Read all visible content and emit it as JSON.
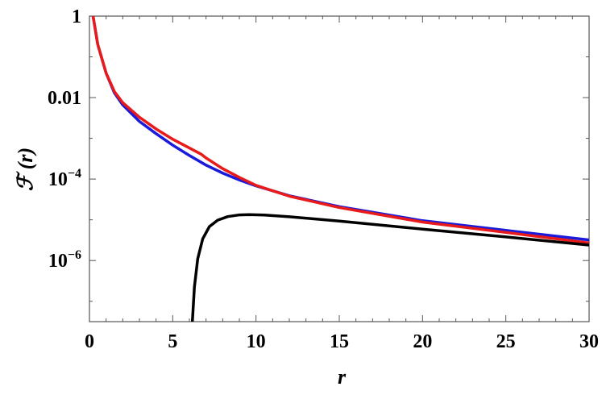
{
  "chart_data": {
    "type": "line",
    "title": "",
    "xlabel": "r",
    "ylabel": "ℱ (r)",
    "xlim": [
      0,
      30
    ],
    "ylim_log10": [
      -7.5,
      0
    ],
    "y_scale": "log",
    "grid": false,
    "x_ticks": [
      0,
      5,
      10,
      15,
      20,
      25,
      30
    ],
    "x_tick_labels": [
      "0",
      "5",
      "10",
      "15",
      "20",
      "25",
      "30"
    ],
    "y_ticks": [
      {
        "value": 1,
        "mantissa": "1",
        "exp": ""
      },
      {
        "value": 0.01,
        "mantissa": "0.01",
        "exp": ""
      },
      {
        "value": 0.0001,
        "mantissa": "10",
        "exp": "−4"
      },
      {
        "value": 1e-06,
        "mantissa": "10",
        "exp": "−6"
      }
    ],
    "series": [
      {
        "color": "#1a1adb",
        "x": [
          0.2,
          0.5,
          1,
          1.5,
          2,
          3,
          4,
          5,
          6,
          7,
          8,
          9,
          10,
          12,
          15,
          20,
          25,
          30
        ],
        "y": [
          1.1,
          0.2,
          0.04,
          0.013,
          0.0066,
          0.0026,
          0.0013,
          0.00068,
          0.00038,
          0.00022,
          0.00014,
          9.5e-05,
          6.8e-05,
          3.9e-05,
          2.1e-05,
          9.5e-06,
          5.5e-06,
          3.2e-06
        ]
      },
      {
        "color": "#e81a1a",
        "x": [
          0.2,
          0.5,
          1,
          1.5,
          2,
          3,
          4,
          5,
          6,
          6.7,
          7,
          8,
          9,
          10,
          12,
          15,
          20,
          25,
          30
        ],
        "y": [
          1.1,
          0.2,
          0.04,
          0.014,
          0.0075,
          0.0033,
          0.0017,
          0.00095,
          0.00058,
          0.00041,
          0.00033,
          0.00018,
          0.00011,
          7e-05,
          3.8e-05,
          2e-05,
          8.8e-06,
          4.9e-06,
          2.7e-06
        ]
      },
      {
        "color": "#000000",
        "x": [
          6.18,
          6.3,
          6.5,
          6.8,
          7.2,
          7.7,
          8.3,
          9,
          9.6,
          10.5,
          12,
          15,
          20,
          25,
          30
        ],
        "y": [
          3.2e-08,
          2.2e-07,
          1.1e-06,
          3.4e-06,
          6.8e-06,
          9.8e-06,
          1.2e-05,
          1.32e-05,
          1.34e-05,
          1.31e-05,
          1.19e-05,
          9.3e-06,
          5.9e-06,
          3.8e-06,
          2.4e-06
        ]
      }
    ]
  }
}
